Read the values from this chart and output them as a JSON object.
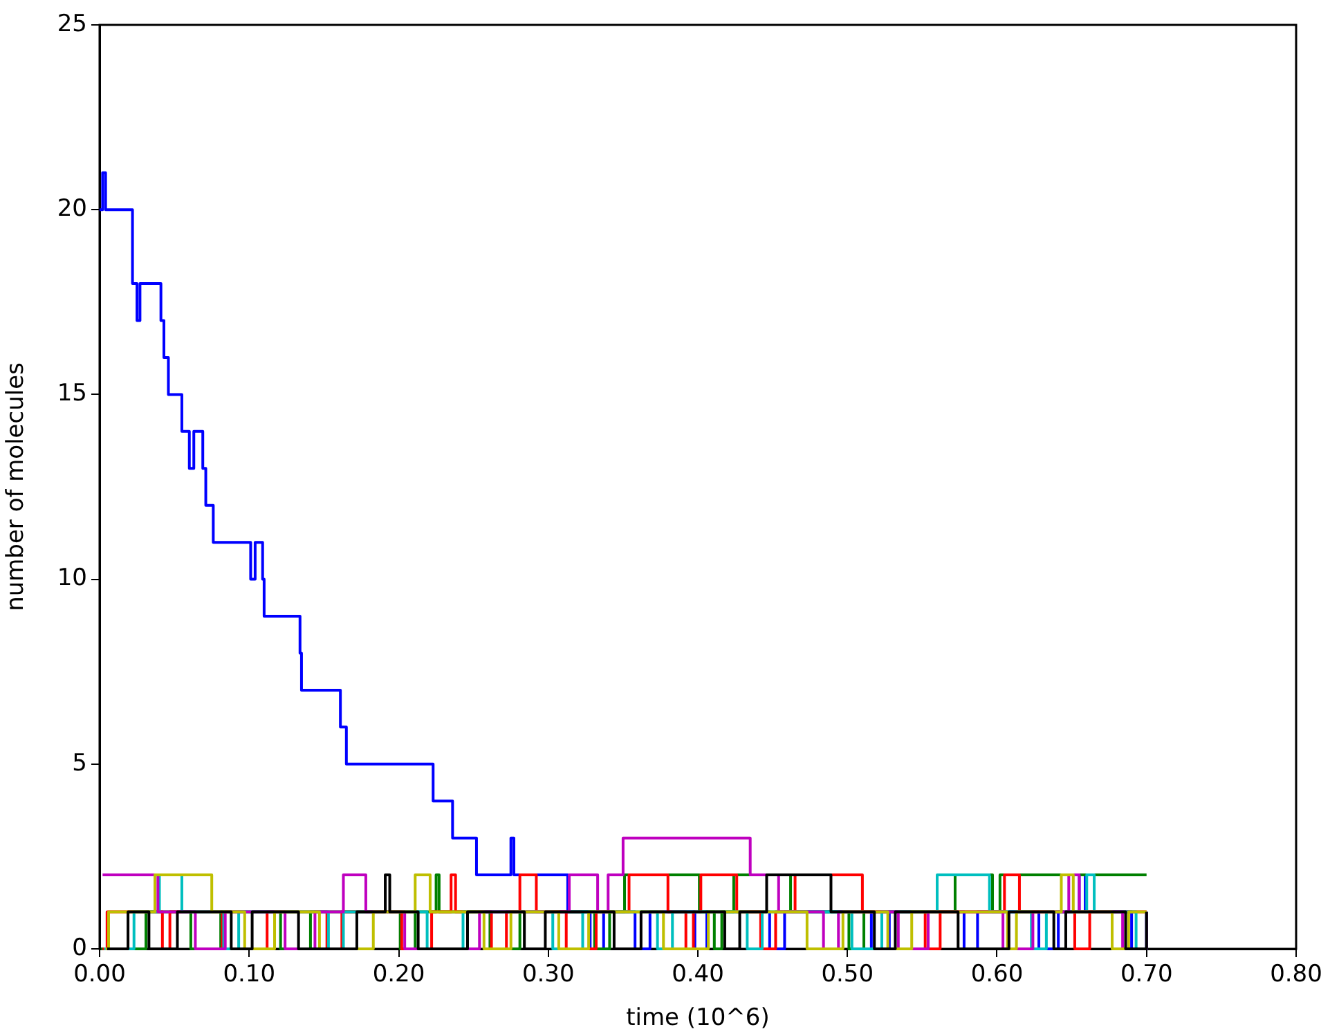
{
  "chart_data": {
    "type": "step",
    "xlabel": "time (10^6)",
    "ylabel": "number of molecules",
    "xlim": [
      0,
      0.8
    ],
    "ylim": [
      0,
      25
    ],
    "xticks": [
      {
        "value": 0,
        "label": "0.00"
      },
      {
        "value": 0.1,
        "label": "0.10"
      },
      {
        "value": 0.2,
        "label": "0.20"
      },
      {
        "value": 0.3,
        "label": "0.30"
      },
      {
        "value": 0.4,
        "label": "0.40"
      },
      {
        "value": 0.5,
        "label": "0.50"
      },
      {
        "value": 0.6,
        "label": "0.60"
      },
      {
        "value": 0.7,
        "label": "0.70"
      },
      {
        "value": 0.8,
        "label": "0.80"
      }
    ],
    "yticks": [
      0,
      5,
      10,
      15,
      20,
      25
    ],
    "grid": false,
    "legend": false,
    "series": [
      {
        "color": "#0000ff",
        "x": [
          0,
          0.002,
          0.004,
          0.022,
          0.025,
          0.027,
          0.041,
          0.043,
          0.046,
          0.055,
          0.06,
          0.063,
          0.069,
          0.071,
          0.076,
          0.101,
          0.104,
          0.109,
          0.11,
          0.134,
          0.135,
          0.161,
          0.165,
          0.223,
          0.236,
          0.252,
          0.275,
          0.277,
          0.313,
          0.328,
          0.337,
          0.358,
          0.368,
          0.398,
          0.406,
          0.448,
          0.458,
          0.516,
          0.528,
          0.578,
          0.587,
          0.628,
          0.641,
          0.655,
          0.659,
          0.69,
          0.7
        ],
        "values": [
          20,
          21,
          20,
          18,
          17,
          18,
          17,
          16,
          15,
          14,
          13,
          14,
          13,
          12,
          11,
          10,
          11,
          10,
          9,
          8,
          7,
          6,
          5,
          4,
          3,
          2,
          3,
          2,
          1,
          0,
          1,
          0,
          1,
          0,
          1,
          0,
          1,
          0,
          1,
          0,
          1,
          0,
          1,
          2,
          1,
          0,
          1
        ]
      },
      {
        "color": "#008000",
        "x": [
          0.001,
          0.031,
          0.061,
          0.081,
          0.121,
          0.141,
          0.201,
          0.211,
          0.225,
          0.227,
          0.261,
          0.281,
          0.331,
          0.341,
          0.351,
          0.401,
          0.411,
          0.416,
          0.424,
          0.462,
          0.501,
          0.511,
          0.572,
          0.597,
          0.602,
          0.7
        ],
        "values": [
          0,
          1,
          0,
          1,
          0,
          1,
          0,
          1,
          2,
          1,
          0,
          1,
          0,
          1,
          2,
          1,
          0,
          1,
          2,
          1,
          0,
          1,
          2,
          1,
          2,
          2
        ]
      },
      {
        "color": "#ff0000",
        "x": [
          0.002,
          0.005,
          0.042,
          0.047,
          0.082,
          0.112,
          0.152,
          0.162,
          0.202,
          0.222,
          0.235,
          0.238,
          0.262,
          0.272,
          0.281,
          0.292,
          0.312,
          0.332,
          0.354,
          0.38,
          0.392,
          0.397,
          0.402,
          0.426,
          0.442,
          0.452,
          0.465,
          0.51,
          0.552,
          0.562,
          0.605,
          0.615,
          0.652,
          0.662,
          0.7
        ],
        "values": [
          0,
          1,
          0,
          1,
          0,
          1,
          0,
          1,
          0,
          1,
          2,
          1,
          0,
          1,
          2,
          1,
          0,
          1,
          2,
          1,
          0,
          1,
          2,
          1,
          0,
          1,
          2,
          1,
          0,
          1,
          2,
          1,
          0,
          1,
          1
        ]
      },
      {
        "color": "#00bfbf",
        "x": [
          0.003,
          0.023,
          0.04,
          0.055,
          0.083,
          0.093,
          0.153,
          0.163,
          0.219,
          0.243,
          0.303,
          0.323,
          0.373,
          0.383,
          0.433,
          0.443,
          0.503,
          0.523,
          0.56,
          0.595,
          0.623,
          0.633,
          0.66,
          0.665,
          0.693,
          0.7
        ],
        "values": [
          0,
          1,
          2,
          1,
          0,
          1,
          0,
          1,
          0,
          1,
          0,
          1,
          0,
          1,
          0,
          1,
          0,
          1,
          2,
          1,
          0,
          1,
          2,
          1,
          0,
          1
        ]
      },
      {
        "color": "#bf00bf",
        "x": [
          0.002,
          0.039,
          0.064,
          0.084,
          0.124,
          0.144,
          0.163,
          0.178,
          0.204,
          0.254,
          0.314,
          0.333,
          0.34,
          0.35,
          0.435,
          0.454,
          0.484,
          0.494,
          0.534,
          0.554,
          0.604,
          0.624,
          0.648,
          0.655,
          0.684,
          0.7
        ],
        "values": [
          2,
          1,
          0,
          1,
          0,
          1,
          2,
          1,
          0,
          1,
          2,
          1,
          2,
          3,
          2,
          1,
          0,
          1,
          0,
          1,
          0,
          1,
          2,
          1,
          0,
          1
        ]
      },
      {
        "color": "#bfbf00",
        "x": [
          0.004,
          0.006,
          0.037,
          0.075,
          0.097,
          0.117,
          0.147,
          0.183,
          0.211,
          0.221,
          0.257,
          0.275,
          0.307,
          0.327,
          0.377,
          0.407,
          0.473,
          0.497,
          0.527,
          0.543,
          0.607,
          0.613,
          0.643,
          0.651,
          0.677,
          0.688,
          0.7
        ],
        "values": [
          0,
          1,
          2,
          1,
          0,
          1,
          0,
          1,
          2,
          1,
          0,
          1,
          0,
          1,
          0,
          1,
          0,
          1,
          0,
          1,
          0,
          1,
          2,
          1,
          0,
          1,
          1
        ]
      },
      {
        "color": "#000000",
        "x": [
          0.005,
          0.019,
          0.033,
          0.052,
          0.088,
          0.102,
          0.133,
          0.172,
          0.191,
          0.194,
          0.213,
          0.246,
          0.284,
          0.298,
          0.344,
          0.362,
          0.418,
          0.428,
          0.446,
          0.489,
          0.518,
          0.532,
          0.574,
          0.608,
          0.638,
          0.646,
          0.686,
          0.7
        ],
        "values": [
          0,
          1,
          0,
          1,
          0,
          1,
          0,
          1,
          2,
          1,
          0,
          1,
          0,
          1,
          0,
          1,
          0,
          1,
          2,
          1,
          0,
          1,
          0,
          1,
          0,
          1,
          0,
          1
        ]
      }
    ]
  }
}
